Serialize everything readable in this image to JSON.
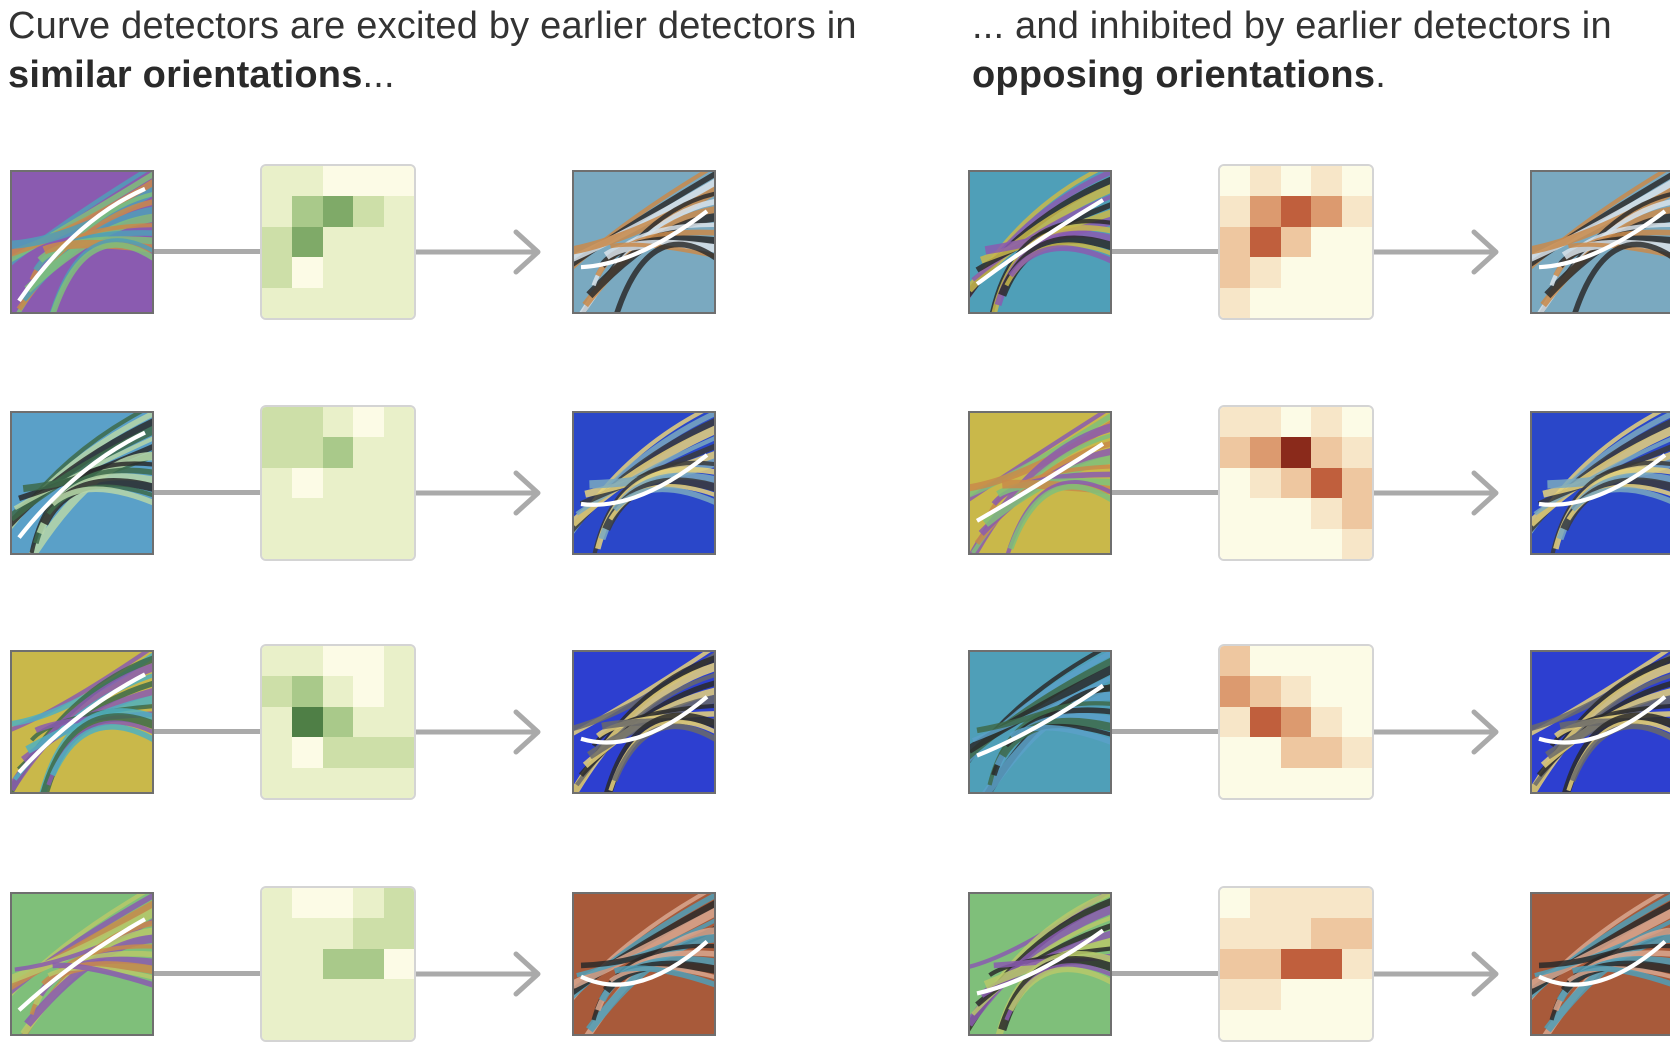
{
  "captions": {
    "left": {
      "pre": "Curve detectors are excited by earlier detectors in ",
      "bold": "similar orientations",
      "post": "..."
    },
    "right": {
      "pre": "... and inhibited by earlier detectors in ",
      "bold": "opposing orientations",
      "post": "."
    }
  },
  "palette": {
    "neutral": "#fcfbe6",
    "positive_scale": [
      "#fcfbe6",
      "#e9f0c9",
      "#cddfa8",
      "#a9c98a",
      "#7faa68",
      "#4f7f46"
    ],
    "negative_scale": [
      "#fcfbe6",
      "#f7e6c8",
      "#eec7a0",
      "#dc9a6f",
      "#c05f3d",
      "#8a2a1b"
    ]
  },
  "panels": [
    {
      "name": "excitatory",
      "sign": "positive",
      "rows": [
        {
          "in": [
            "#8a5bb0",
            "#4f9fb8",
            "#7fbf7a",
            "#c98a4a"
          ],
          "out": [
            "#7aa9c0",
            "#c98a4a",
            "#2b2b2b",
            "#d9e3ea"
          ],
          "weights": [
            [
              1,
              1,
              0,
              0,
              0
            ],
            [
              1,
              3,
              4,
              2,
              1
            ],
            [
              2,
              4,
              1,
              1,
              1
            ],
            [
              2,
              0,
              1,
              1,
              1
            ],
            [
              1,
              1,
              1,
              1,
              1
            ]
          ]
        },
        {
          "in": [
            "#5aa0c8",
            "#3d6a4a",
            "#b7d6a8",
            "#2a2a2a"
          ],
          "out": [
            "#2a47c9",
            "#e8d27a",
            "#7aa9c0",
            "#3a3a3a"
          ],
          "weights": [
            [
              2,
              2,
              1,
              0,
              1
            ],
            [
              2,
              2,
              3,
              1,
              1
            ],
            [
              1,
              0,
              1,
              1,
              1
            ],
            [
              1,
              1,
              1,
              1,
              1
            ],
            [
              1,
              1,
              1,
              1,
              1
            ]
          ]
        },
        {
          "in": [
            "#c9b84a",
            "#8a5bb0",
            "#4fb0c0",
            "#3d6a4a"
          ],
          "out": [
            "#2d3fd0",
            "#e8d27a",
            "#6a6a6a",
            "#2a2a2a"
          ],
          "weights": [
            [
              1,
              1,
              0,
              0,
              1
            ],
            [
              2,
              3,
              1,
              0,
              1
            ],
            [
              1,
              5,
              3,
              1,
              1
            ],
            [
              1,
              0,
              2,
              2,
              2
            ],
            [
              1,
              1,
              1,
              1,
              1
            ]
          ]
        },
        {
          "in": [
            "#7fbf7a",
            "#b7c86a",
            "#8a5bb0",
            "#c98a4a"
          ],
          "out": [
            "#a85a3a",
            "#d9a890",
            "#4f9fb8",
            "#2a2a2a"
          ],
          "weights": [
            [
              1,
              0,
              0,
              1,
              2
            ],
            [
              1,
              1,
              1,
              2,
              2
            ],
            [
              1,
              1,
              3,
              3,
              0
            ],
            [
              1,
              1,
              1,
              1,
              1
            ],
            [
              1,
              1,
              1,
              1,
              1
            ]
          ]
        }
      ]
    },
    {
      "name": "inhibitory",
      "sign": "negative",
      "rows": [
        {
          "in": [
            "#4f9fb8",
            "#c9b84a",
            "#8a5bb0",
            "#2a2a2a"
          ],
          "out": [
            "#7aa9c0",
            "#c98a4a",
            "#2b2b2b",
            "#d9e3ea"
          ],
          "weights": [
            [
              0,
              1,
              0,
              1,
              0
            ],
            [
              1,
              3,
              4,
              3,
              1
            ],
            [
              2,
              4,
              2,
              0,
              0
            ],
            [
              2,
              1,
              0,
              0,
              0
            ],
            [
              1,
              0,
              0,
              0,
              0
            ]
          ]
        },
        {
          "in": [
            "#c9b84a",
            "#8a5bb0",
            "#7fbf7a",
            "#c98a4a"
          ],
          "out": [
            "#2a47c9",
            "#e8d27a",
            "#7aa9c0",
            "#3a3a3a"
          ],
          "weights": [
            [
              1,
              1,
              0,
              1,
              0
            ],
            [
              2,
              3,
              5,
              2,
              1
            ],
            [
              0,
              1,
              2,
              4,
              2
            ],
            [
              0,
              0,
              0,
              1,
              2
            ],
            [
              0,
              0,
              0,
              0,
              1
            ]
          ]
        },
        {
          "in": [
            "#4f9fb8",
            "#2a2a2a",
            "#5aa0c8",
            "#3d6a4a"
          ],
          "out": [
            "#2d3fd0",
            "#e8d27a",
            "#6a6a6a",
            "#2a2a2a"
          ],
          "weights": [
            [
              2,
              0,
              0,
              0,
              0
            ],
            [
              3,
              2,
              1,
              0,
              0
            ],
            [
              1,
              4,
              3,
              1,
              0
            ],
            [
              0,
              0,
              2,
              2,
              1
            ],
            [
              0,
              0,
              0,
              0,
              0
            ]
          ]
        },
        {
          "in": [
            "#7fbf7a",
            "#8a5bb0",
            "#b7c86a",
            "#2a2a2a"
          ],
          "out": [
            "#a85a3a",
            "#d9a890",
            "#4f9fb8",
            "#2a2a2a"
          ],
          "weights": [
            [
              0,
              1,
              1,
              1,
              1
            ],
            [
              1,
              1,
              1,
              2,
              2
            ],
            [
              2,
              2,
              4,
              4,
              1
            ],
            [
              1,
              1,
              0,
              0,
              0
            ],
            [
              0,
              0,
              0,
              0,
              0
            ]
          ]
        }
      ]
    }
  ]
}
